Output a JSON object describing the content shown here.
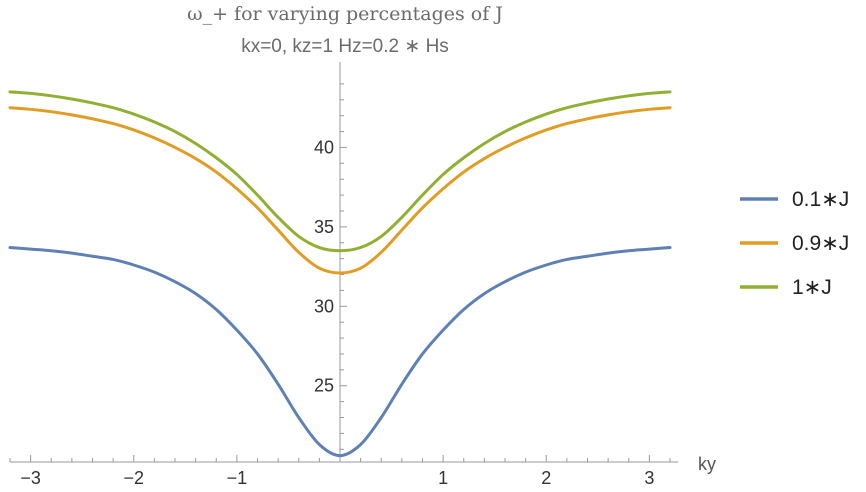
{
  "chart_data": {
    "type": "line",
    "title": "ω_+ for varying percentages of J",
    "subtitle": "kx=0, kz=1 Hz=0.2 ∗ Hs",
    "xlabel": "ky",
    "ylabel": "",
    "xlim": [
      -3.2,
      3.2
    ],
    "ylim": [
      20.2,
      45.0
    ],
    "x_ticks": [
      -3,
      -2,
      -1,
      1,
      2,
      3
    ],
    "x_tick_labels": [
      "−3",
      "−2",
      "−1",
      "1",
      "2",
      "3"
    ],
    "y_ticks": [
      25,
      30,
      35,
      40
    ],
    "y_tick_labels": [
      "25",
      "30",
      "35",
      "40"
    ],
    "grid": false,
    "legend_position": "right",
    "series": [
      {
        "name": "0.1∗J",
        "color": "#5E81B5",
        "x": [
          -3.2,
          -3.0,
          -2.8,
          -2.6,
          -2.4,
          -2.2,
          -2.0,
          -1.8,
          -1.6,
          -1.4,
          -1.2,
          -1.0,
          -0.8,
          -0.6,
          -0.4,
          -0.2,
          0.0,
          0.2,
          0.4,
          0.6,
          0.8,
          1.0,
          1.2,
          1.4,
          1.6,
          1.8,
          2.0,
          2.2,
          2.4,
          2.6,
          2.8,
          3.0,
          3.2
        ],
        "values": [
          33.7,
          33.6,
          33.5,
          33.35,
          33.15,
          32.95,
          32.6,
          32.15,
          31.55,
          30.8,
          29.8,
          28.5,
          27.0,
          25.1,
          23.0,
          21.3,
          20.6,
          21.3,
          23.0,
          25.1,
          27.0,
          28.5,
          29.8,
          30.8,
          31.55,
          32.15,
          32.6,
          32.95,
          33.15,
          33.35,
          33.5,
          33.6,
          33.7
        ]
      },
      {
        "name": "0.9∗J",
        "color": "#E19C24",
        "x": [
          -3.2,
          -3.0,
          -2.8,
          -2.6,
          -2.4,
          -2.2,
          -2.0,
          -1.8,
          -1.6,
          -1.4,
          -1.2,
          -1.0,
          -0.8,
          -0.6,
          -0.4,
          -0.2,
          0.0,
          0.2,
          0.4,
          0.6,
          0.8,
          1.0,
          1.2,
          1.4,
          1.6,
          1.8,
          2.0,
          2.2,
          2.4,
          2.6,
          2.8,
          3.0,
          3.2
        ],
        "values": [
          42.5,
          42.4,
          42.25,
          42.05,
          41.8,
          41.5,
          41.1,
          40.6,
          40.0,
          39.3,
          38.45,
          37.4,
          36.2,
          34.8,
          33.4,
          32.4,
          32.1,
          32.4,
          33.4,
          34.8,
          36.2,
          37.4,
          38.45,
          39.3,
          40.0,
          40.6,
          41.1,
          41.5,
          41.8,
          42.05,
          42.25,
          42.4,
          42.5
        ]
      },
      {
        "name": "1∗J",
        "color": "#8FB032",
        "x": [
          -3.2,
          -3.0,
          -2.8,
          -2.6,
          -2.4,
          -2.2,
          -2.0,
          -1.8,
          -1.6,
          -1.4,
          -1.2,
          -1.0,
          -0.8,
          -0.6,
          -0.4,
          -0.2,
          0.0,
          0.2,
          0.4,
          0.6,
          0.8,
          1.0,
          1.2,
          1.4,
          1.6,
          1.8,
          2.0,
          2.2,
          2.4,
          2.6,
          2.8,
          3.0,
          3.2
        ],
        "values": [
          43.5,
          43.4,
          43.25,
          43.05,
          42.8,
          42.5,
          42.1,
          41.6,
          41.0,
          40.25,
          39.35,
          38.3,
          37.0,
          35.6,
          34.4,
          33.7,
          33.5,
          33.7,
          34.4,
          35.6,
          37.0,
          38.3,
          39.35,
          40.25,
          41.0,
          41.6,
          42.1,
          42.5,
          42.8,
          43.05,
          43.25,
          43.4,
          43.5
        ]
      }
    ]
  }
}
